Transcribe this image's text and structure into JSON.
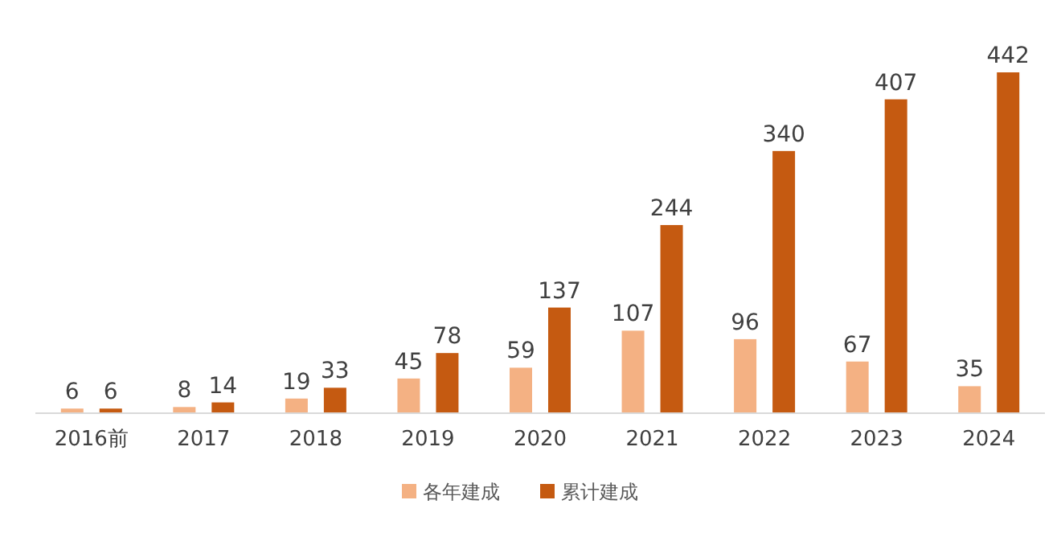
{
  "chart_data": {
    "type": "bar",
    "categories": [
      "2016前",
      "2017",
      "2018",
      "2019",
      "2020",
      "2021",
      "2022",
      "2023",
      "2024"
    ],
    "series": [
      {
        "name": "各年建成",
        "color": "#f4b183",
        "values": [
          6,
          8,
          19,
          45,
          59,
          107,
          96,
          67,
          35
        ]
      },
      {
        "name": "累计建成",
        "color": "#c55a11",
        "values": [
          6,
          14,
          33,
          78,
          137,
          244,
          340,
          407,
          442
        ]
      }
    ],
    "data_labels": true,
    "legend": "bottom"
  }
}
